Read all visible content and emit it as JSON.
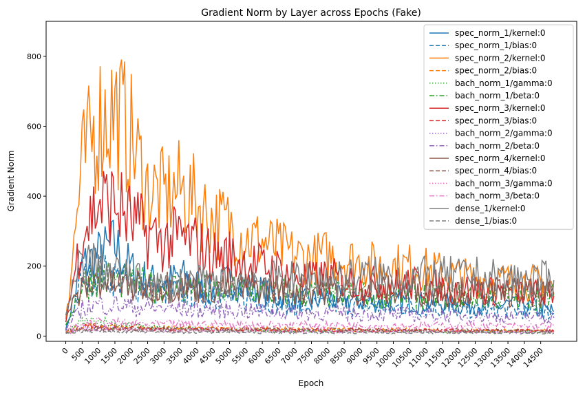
{
  "chart_data": {
    "type": "line",
    "title": "Gradient Norm by Layer across Epochs (Fake)",
    "xlabel": "Epoch",
    "ylabel": "Gradient Norm",
    "xlim": [
      -600,
      15600
    ],
    "ylim": [
      -15,
      900
    ],
    "xticks": [
      0,
      500,
      1000,
      1500,
      2000,
      2500,
      3000,
      3500,
      4000,
      4500,
      5000,
      5500,
      6000,
      6500,
      7000,
      7500,
      8000,
      8500,
      9000,
      9500,
      10000,
      10500,
      11000,
      11500,
      12000,
      12500,
      13000,
      13500,
      14000,
      14500
    ],
    "xtick_labels": [
      "0",
      "500",
      "1000",
      "1500",
      "2000",
      "2500",
      "3000",
      "3500",
      "4000",
      "4500",
      "5000",
      "5500",
      "6000",
      "6500",
      "7000",
      "7500",
      "8000",
      "8500",
      "9000",
      "9500",
      "10000",
      "10500",
      "11000",
      "11500",
      "12000",
      "12500",
      "13000",
      "13500",
      "14000",
      "14500"
    ],
    "yticks": [
      0,
      200,
      400,
      600,
      800
    ],
    "ytick_labels": [
      "0",
      "200",
      "400",
      "600",
      "800"
    ],
    "legend_position": "top-right",
    "grid": false,
    "x": [
      0,
      500,
      1000,
      1500,
      2000,
      2500,
      3000,
      3500,
      4000,
      4500,
      5000,
      5500,
      6000,
      6500,
      7000,
      7500,
      8000,
      8500,
      9000,
      9500,
      10000,
      10500,
      11000,
      11500,
      12000,
      12500,
      13000,
      13500,
      14000,
      14500,
      14900
    ],
    "series": [
      {
        "name": "spec_norm_1/kernel:0",
        "color": "#1f77b4",
        "dash": "solid",
        "values": [
          20,
          200,
          230,
          260,
          190,
          160,
          150,
          170,
          150,
          130,
          160,
          140,
          130,
          110,
          100,
          100,
          110,
          105,
          100,
          100,
          95,
          100,
          95,
          95,
          90,
          90,
          85,
          90,
          85,
          80,
          70
        ]
      },
      {
        "name": "spec_norm_1/bias:0",
        "color": "#1f77b4",
        "dash": "dashed",
        "values": [
          15,
          160,
          180,
          170,
          150,
          140,
          130,
          125,
          120,
          115,
          110,
          105,
          100,
          95,
          85,
          85,
          90,
          90,
          85,
          85,
          80,
          85,
          80,
          80,
          78,
          75,
          72,
          75,
          72,
          70,
          65
        ]
      },
      {
        "name": "spec_norm_2/kernel:0",
        "color": "#ff7f0e",
        "dash": "solid",
        "values": [
          50,
          480,
          620,
          650,
          560,
          420,
          400,
          420,
          380,
          330,
          320,
          280,
          270,
          250,
          230,
          220,
          230,
          220,
          210,
          200,
          200,
          200,
          190,
          180,
          170,
          165,
          160,
          160,
          155,
          150,
          140
        ]
      },
      {
        "name": "spec_norm_2/bias:0",
        "color": "#ff7f0e",
        "dash": "dashed",
        "values": [
          12,
          30,
          28,
          26,
          25,
          24,
          23,
          22,
          22,
          21,
          21,
          20,
          20,
          19,
          19,
          18,
          18,
          18,
          18,
          17,
          17,
          17,
          17,
          16,
          16,
          16,
          16,
          15,
          15,
          15,
          14
        ]
      },
      {
        "name": "bach_norm_1/gamma:0",
        "color": "#2ca02c",
        "dash": "dotted",
        "values": [
          10,
          40,
          45,
          35,
          30,
          25,
          22,
          20,
          20,
          18,
          18,
          17,
          17,
          16,
          16,
          15,
          15,
          15,
          15,
          14,
          14,
          14,
          14,
          13,
          13,
          13,
          13,
          13,
          12,
          12,
          12
        ]
      },
      {
        "name": "bach_norm_1/beta:0",
        "color": "#2ca02c",
        "dash": "dashdot",
        "values": [
          30,
          150,
          170,
          160,
          150,
          145,
          140,
          140,
          135,
          130,
          130,
          130,
          125,
          125,
          120,
          120,
          120,
          120,
          118,
          118,
          118,
          116,
          116,
          115,
          114,
          114,
          113,
          112,
          112,
          110,
          110
        ]
      },
      {
        "name": "spec_norm_3/kernel:0",
        "color": "#d62728",
        "dash": "solid",
        "values": [
          40,
          300,
          380,
          380,
          330,
          290,
          270,
          280,
          260,
          230,
          230,
          210,
          200,
          190,
          170,
          160,
          170,
          160,
          150,
          150,
          145,
          150,
          145,
          140,
          135,
          135,
          130,
          130,
          125,
          120,
          115
        ]
      },
      {
        "name": "spec_norm_3/bias:0",
        "color": "#d62728",
        "dash": "dashed",
        "values": [
          10,
          25,
          24,
          23,
          22,
          21,
          21,
          20,
          20,
          19,
          19,
          19,
          18,
          18,
          18,
          17,
          17,
          17,
          17,
          16,
          16,
          16,
          16,
          16,
          15,
          15,
          15,
          15,
          15,
          14,
          14
        ]
      },
      {
        "name": "bach_norm_2/gamma:0",
        "color": "#9467bd",
        "dash": "dotted",
        "values": [
          8,
          20,
          22,
          20,
          19,
          18,
          18,
          17,
          17,
          16,
          16,
          16,
          15,
          15,
          15,
          15,
          14,
          14,
          14,
          14,
          14,
          13,
          13,
          13,
          13,
          13,
          12,
          12,
          12,
          12,
          12
        ]
      },
      {
        "name": "bach_norm_2/beta:0",
        "color": "#9467bd",
        "dash": "dashdot",
        "values": [
          20,
          80,
          90,
          90,
          85,
          80,
          80,
          78,
          76,
          75,
          74,
          72,
          70,
          70,
          68,
          66,
          66,
          65,
          64,
          63,
          62,
          62,
          60,
          60,
          58,
          58,
          56,
          55,
          55,
          54,
          52
        ]
      },
      {
        "name": "spec_norm_4/kernel:0",
        "color": "#8c564b",
        "dash": "solid",
        "values": [
          60,
          130,
          160,
          150,
          140,
          140,
          145,
          145,
          140,
          140,
          140,
          140,
          140,
          135,
          135,
          135,
          135,
          130,
          130,
          130,
          130,
          130,
          130,
          128,
          128,
          128,
          125,
          125,
          125,
          122,
          120
        ]
      },
      {
        "name": "spec_norm_4/bias:0",
        "color": "#8c564b",
        "dash": "dashed",
        "values": [
          10,
          22,
          24,
          22,
          21,
          20,
          20,
          20,
          19,
          19,
          19,
          18,
          18,
          18,
          18,
          17,
          17,
          17,
          17,
          17,
          16,
          16,
          16,
          16,
          16,
          15,
          15,
          15,
          15,
          15,
          14
        ]
      },
      {
        "name": "bach_norm_3/gamma:0",
        "color": "#e377c2",
        "dash": "dotted",
        "values": [
          8,
          18,
          20,
          18,
          17,
          17,
          16,
          16,
          16,
          15,
          15,
          15,
          15,
          14,
          14,
          14,
          14,
          14,
          13,
          13,
          13,
          13,
          13,
          13,
          12,
          12,
          12,
          12,
          12,
          12,
          11
        ]
      },
      {
        "name": "bach_norm_3/beta:0",
        "color": "#e377c2",
        "dash": "dashdot",
        "values": [
          15,
          35,
          40,
          38,
          36,
          35,
          34,
          34,
          33,
          33,
          33,
          32,
          32,
          32,
          32,
          31,
          31,
          31,
          31,
          30,
          30,
          30,
          30,
          30,
          30,
          29,
          29,
          29,
          29,
          29,
          28
        ]
      },
      {
        "name": "dense_1/kernel:0",
        "color": "#7f7f7f",
        "dash": "solid",
        "values": [
          60,
          220,
          200,
          180,
          160,
          150,
          140,
          150,
          150,
          150,
          150,
          160,
          160,
          160,
          160,
          165,
          165,
          165,
          170,
          170,
          170,
          170,
          170,
          170,
          170,
          170,
          165,
          165,
          160,
          160,
          160
        ]
      },
      {
        "name": "dense_1/bias:0",
        "color": "#7f7f7f",
        "dash": "dashed",
        "values": [
          8,
          15,
          14,
          13,
          12,
          12,
          12,
          11,
          11,
          11,
          11,
          11,
          10,
          10,
          10,
          10,
          10,
          10,
          10,
          10,
          10,
          10,
          10,
          9,
          9,
          9,
          9,
          9,
          9,
          9,
          9
        ]
      }
    ]
  }
}
